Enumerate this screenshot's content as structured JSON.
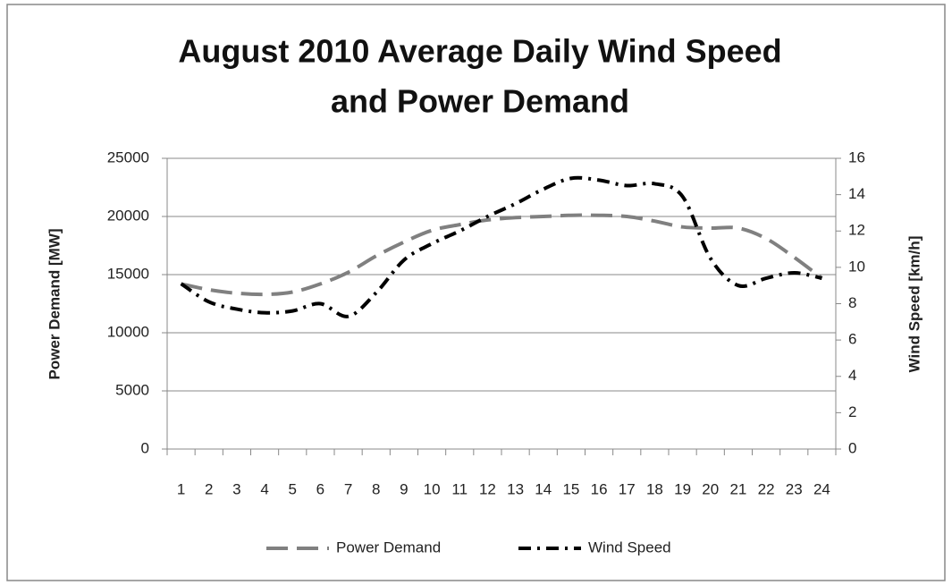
{
  "chart_data": {
    "type": "line",
    "title": [
      "August 2010 Average Daily Wind Speed",
      "and Power Demand"
    ],
    "y_label": "Power Demand [MW]",
    "y2_label": "Wind Speed [km/h]",
    "categories": [
      "1",
      "2",
      "3",
      "4",
      "5",
      "6",
      "7",
      "8",
      "9",
      "10",
      "11",
      "12",
      "13",
      "14",
      "15",
      "16",
      "17",
      "18",
      "19",
      "20",
      "21",
      "22",
      "23",
      "24"
    ],
    "series": [
      {
        "name": "Power Demand",
        "color": "#808080",
        "dash": "24 10",
        "values": [
          14200,
          13700,
          13400,
          13300,
          13500,
          14200,
          15200,
          16600,
          17800,
          18800,
          19300,
          19700,
          19900,
          20000,
          20100,
          20100,
          20000,
          19600,
          19100,
          19000,
          19000,
          18100,
          16500,
          14700
        ]
      },
      {
        "name": "Wind Speed",
        "color": "#000000",
        "dash": "14 7 3 7",
        "axis": "y2",
        "values": [
          9.1,
          8.1,
          7.7,
          7.5,
          7.6,
          8.0,
          7.3,
          8.6,
          10.4,
          11.3,
          12.0,
          12.8,
          13.5,
          14.3,
          14.9,
          14.8,
          14.5,
          14.6,
          13.9,
          10.5,
          9.0,
          9.4,
          9.7,
          9.4
        ]
      }
    ],
    "ylim": [
      0,
      25000
    ],
    "yticks": [
      0,
      5000,
      10000,
      15000,
      20000,
      25000
    ],
    "y2lim": [
      0,
      16
    ],
    "y2ticks": [
      0,
      2,
      4,
      6,
      8,
      10,
      12,
      14,
      16
    ],
    "grid": true,
    "legend": "bottom"
  }
}
